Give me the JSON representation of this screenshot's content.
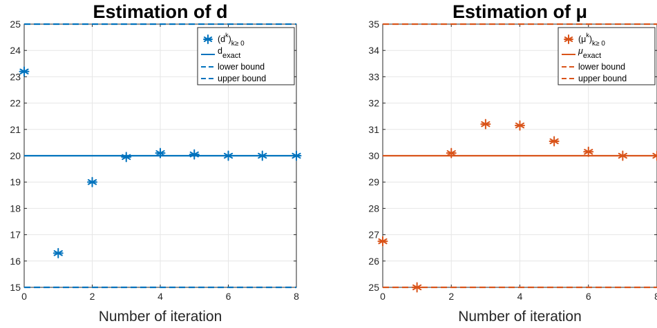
{
  "chart_data": [
    {
      "type": "scatter",
      "title": "Estimation of d",
      "xlabel": "Number of iteration",
      "ylabel": "",
      "xlim": [
        0,
        8
      ],
      "ylim": [
        15,
        25
      ],
      "xticks": [
        "0",
        "2",
        "4",
        "6",
        "8"
      ],
      "yticks": [
        "15",
        "16",
        "17",
        "18",
        "19",
        "20",
        "21",
        "22",
        "23",
        "24",
        "25"
      ],
      "grid": true,
      "legend_position": "top-right",
      "color": "#0072BD",
      "series": [
        {
          "name": "(d^k)_{k≥0}",
          "kind": "markers",
          "x": [
            0,
            1,
            2,
            3,
            4,
            5,
            6,
            7,
            8
          ],
          "y": [
            23.2,
            16.3,
            19.0,
            19.95,
            20.1,
            20.05,
            20.0,
            20.0,
            20.0
          ]
        },
        {
          "name": "d_exact",
          "kind": "solid-line",
          "value": 20
        },
        {
          "name": "lower bound",
          "kind": "dashed-line",
          "value": 15
        },
        {
          "name": "upper bound",
          "kind": "dashed-line",
          "value": 25
        }
      ],
      "legend": {
        "seq_base": "(d",
        "seq_sup": "k",
        "seq_close": ")",
        "seq_sub": "k≥ 0",
        "exact_base": "d",
        "exact_sub": "exact",
        "lower": "lower bound",
        "upper": "upper bound"
      }
    },
    {
      "type": "scatter",
      "title": "Estimation of μ",
      "xlabel": "Number of iteration",
      "ylabel": "",
      "xlim": [
        0,
        8
      ],
      "ylim": [
        25,
        35
      ],
      "xticks": [
        "0",
        "2",
        "4",
        "6",
        "8"
      ],
      "yticks": [
        "25",
        "26",
        "27",
        "28",
        "29",
        "30",
        "31",
        "32",
        "33",
        "34",
        "35"
      ],
      "grid": true,
      "legend_position": "top-right",
      "color": "#D95319",
      "series": [
        {
          "name": "(μ^k)_{k≥0}",
          "kind": "markers",
          "x": [
            0,
            1,
            2,
            3,
            4,
            5,
            6,
            7,
            8
          ],
          "y": [
            26.75,
            25.0,
            30.1,
            31.2,
            31.15,
            30.55,
            30.15,
            30.0,
            30.0
          ]
        },
        {
          "name": "μ_exact",
          "kind": "solid-line",
          "value": 30
        },
        {
          "name": "lower bound",
          "kind": "dashed-line",
          "value": 25
        },
        {
          "name": "upper bound",
          "kind": "dashed-line",
          "value": 35
        }
      ],
      "legend": {
        "seq_base": "(μ",
        "seq_sup": "k",
        "seq_close": ")",
        "seq_sub": "k≥ 0",
        "exact_base": "μ",
        "exact_sub": "exact",
        "lower": "lower bound",
        "upper": "upper bound"
      }
    }
  ]
}
